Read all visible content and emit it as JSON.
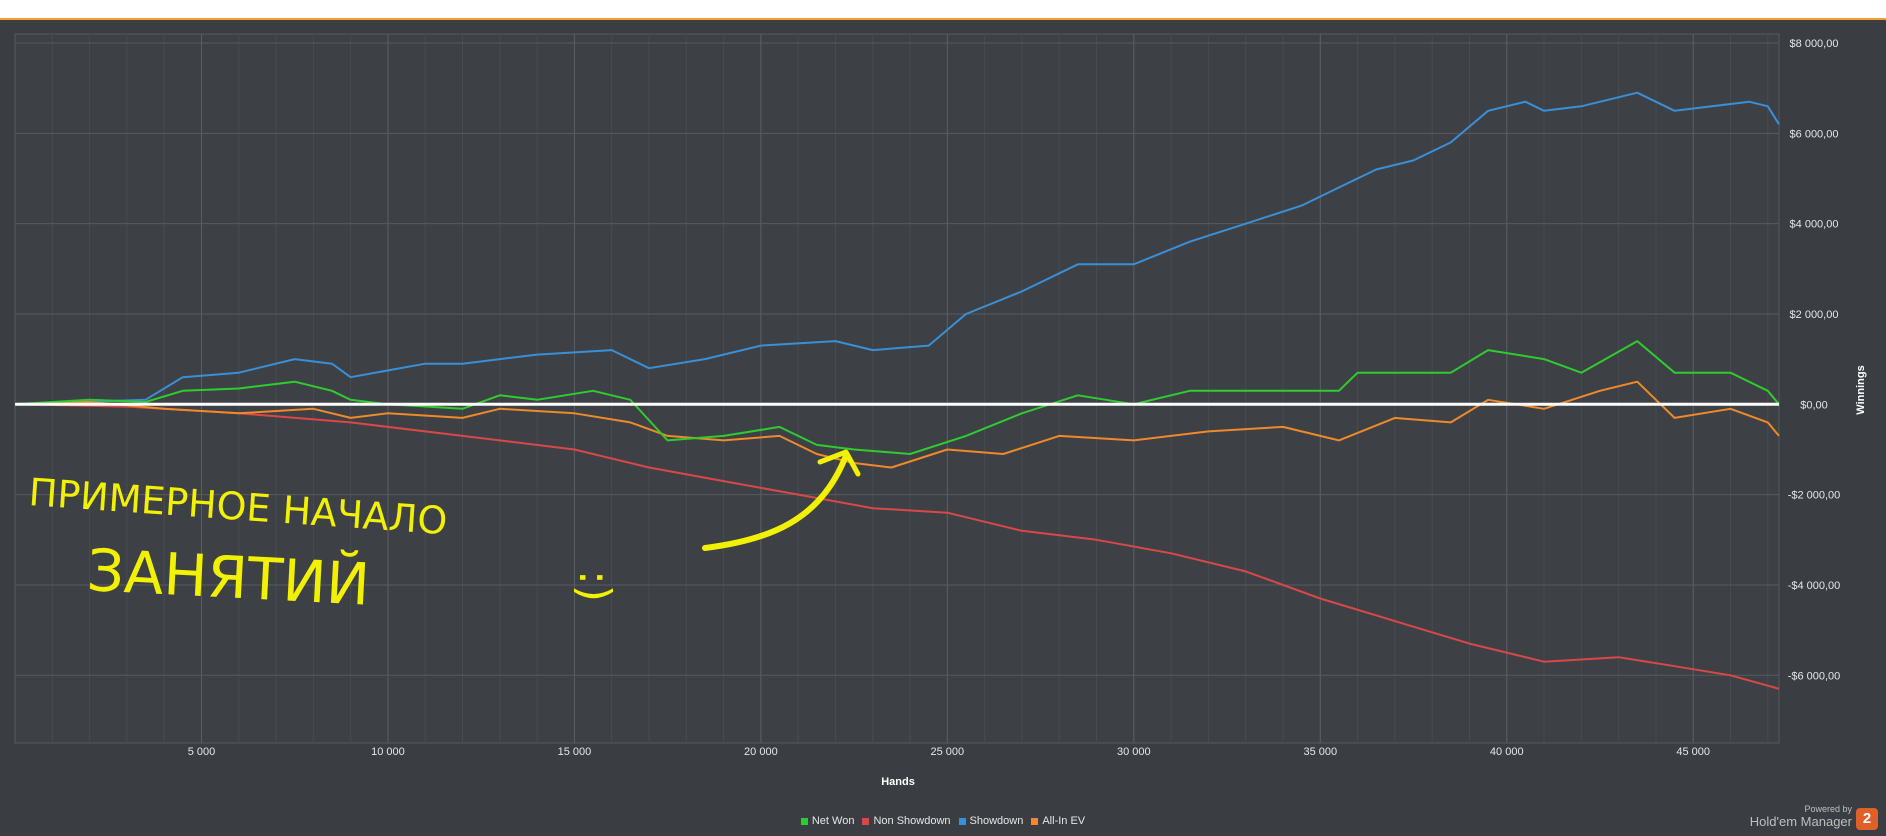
{
  "colors": {
    "net_won": "#2ecc2e",
    "non_showdown": "#d94848",
    "showdown": "#3a8fd6",
    "all_in_ev": "#f0892a",
    "zero_line": "#ffffff",
    "annotation": "#f2f200"
  },
  "chart_data": {
    "type": "line",
    "xlabel": "Hands",
    "ylabel": "Winnings",
    "xlim": [
      0,
      47300
    ],
    "ylim": [
      -7500,
      8200
    ],
    "x_ticks": [
      5000,
      10000,
      15000,
      20000,
      25000,
      30000,
      35000,
      40000,
      45000
    ],
    "x_tick_labels": [
      "5 000",
      "10 000",
      "15 000",
      "20 000",
      "25 000",
      "30 000",
      "35 000",
      "40 000",
      "45 000"
    ],
    "y_ticks": [
      8000,
      6000,
      4000,
      2000,
      0,
      -2000,
      -4000,
      -6000
    ],
    "y_tick_labels": [
      "$8 000,00",
      "$6 000,00",
      "$4 000,00",
      "$2 000,00",
      "$0,00",
      "-$2 000,00",
      "-$4 000,00",
      "-$6 000,00"
    ],
    "legend_position": "bottom-center",
    "series": [
      {
        "name": "Net Won",
        "color": "#2ecc2e",
        "x": [
          0,
          2000,
          3500,
          4500,
          6000,
          7500,
          8500,
          9000,
          10000,
          12000,
          13000,
          14000,
          15500,
          16500,
          17500,
          19000,
          20500,
          21500,
          22500,
          24000,
          25500,
          27000,
          28500,
          30000,
          31500,
          33000,
          34500,
          35500,
          36000,
          37000,
          38500,
          39500,
          41000,
          42000,
          43500,
          44500,
          46000,
          47000,
          47300
        ],
        "y": [
          0,
          100,
          50,
          300,
          350,
          500,
          300,
          100,
          0,
          -100,
          200,
          100,
          300,
          100,
          -800,
          -700,
          -500,
          -900,
          -1000,
          -1100,
          -700,
          -200,
          200,
          0,
          300,
          300,
          300,
          300,
          700,
          700,
          700,
          1200,
          1000,
          700,
          1400,
          700,
          700,
          300,
          0
        ]
      },
      {
        "name": "Non Showdown",
        "color": "#d94848",
        "x": [
          0,
          3000,
          6000,
          9000,
          12000,
          15000,
          17000,
          19000,
          21000,
          23000,
          25000,
          27000,
          29000,
          31000,
          33000,
          35000,
          37000,
          39000,
          41000,
          43000,
          44500,
          46000,
          47300
        ],
        "y": [
          0,
          -50,
          -200,
          -400,
          -700,
          -1000,
          -1400,
          -1700,
          -2000,
          -2300,
          -2400,
          -2800,
          -3000,
          -3300,
          -3700,
          -4300,
          -4800,
          -5300,
          -5700,
          -5600,
          -5800,
          -6000,
          -6300
        ]
      },
      {
        "name": "Showdown",
        "color": "#3a8fd6",
        "x": [
          0,
          3500,
          4500,
          6000,
          7500,
          8500,
          9000,
          11000,
          12000,
          14000,
          16000,
          17000,
          18500,
          20000,
          22000,
          23000,
          24500,
          25500,
          27000,
          28500,
          30000,
          31500,
          33000,
          34500,
          35500,
          36500,
          37500,
          38500,
          39500,
          40500,
          41000,
          42000,
          43500,
          44500,
          45500,
          46500,
          47000,
          47300
        ],
        "y": [
          0,
          100,
          600,
          700,
          1000,
          900,
          600,
          900,
          900,
          1100,
          1200,
          800,
          1000,
          1300,
          1400,
          1200,
          1300,
          2000,
          2500,
          3100,
          3100,
          3600,
          4000,
          4400,
          4800,
          5200,
          5400,
          5800,
          6500,
          6700,
          6500,
          6600,
          6900,
          6500,
          6600,
          6700,
          6600,
          6200
        ]
      },
      {
        "name": "All-In EV",
        "color": "#f0892a",
        "x": [
          0,
          2000,
          4000,
          6000,
          8000,
          9000,
          10000,
          12000,
          13000,
          15000,
          16500,
          17500,
          19000,
          20500,
          21500,
          22500,
          23500,
          25000,
          26500,
          28000,
          30000,
          32000,
          34000,
          35500,
          37000,
          38500,
          39500,
          41000,
          42500,
          43500,
          44500,
          46000,
          47000,
          47300
        ],
        "y": [
          0,
          50,
          -100,
          -200,
          -100,
          -300,
          -200,
          -300,
          -100,
          -200,
          -400,
          -700,
          -800,
          -700,
          -1100,
          -1300,
          -1400,
          -1000,
          -1100,
          -700,
          -800,
          -600,
          -500,
          -800,
          -300,
          -400,
          100,
          -100,
          300,
          500,
          -300,
          -100,
          -400,
          -700
        ]
      }
    ]
  },
  "legend": [
    {
      "label": "Net Won",
      "color": "#2ecc2e"
    },
    {
      "label": "Non Showdown",
      "color": "#d94848"
    },
    {
      "label": "Showdown",
      "color": "#3a8fd6"
    },
    {
      "label": "All-In EV",
      "color": "#f0892a"
    }
  ],
  "annotation": {
    "line1": "ПРИМЕРНОЕ НАЧАЛО",
    "line2": "ЗАНЯТИЙ",
    "smiley": ":)"
  },
  "branding": {
    "powered_by": "Powered by",
    "product": "Hold'em Manager",
    "logo": "2"
  }
}
